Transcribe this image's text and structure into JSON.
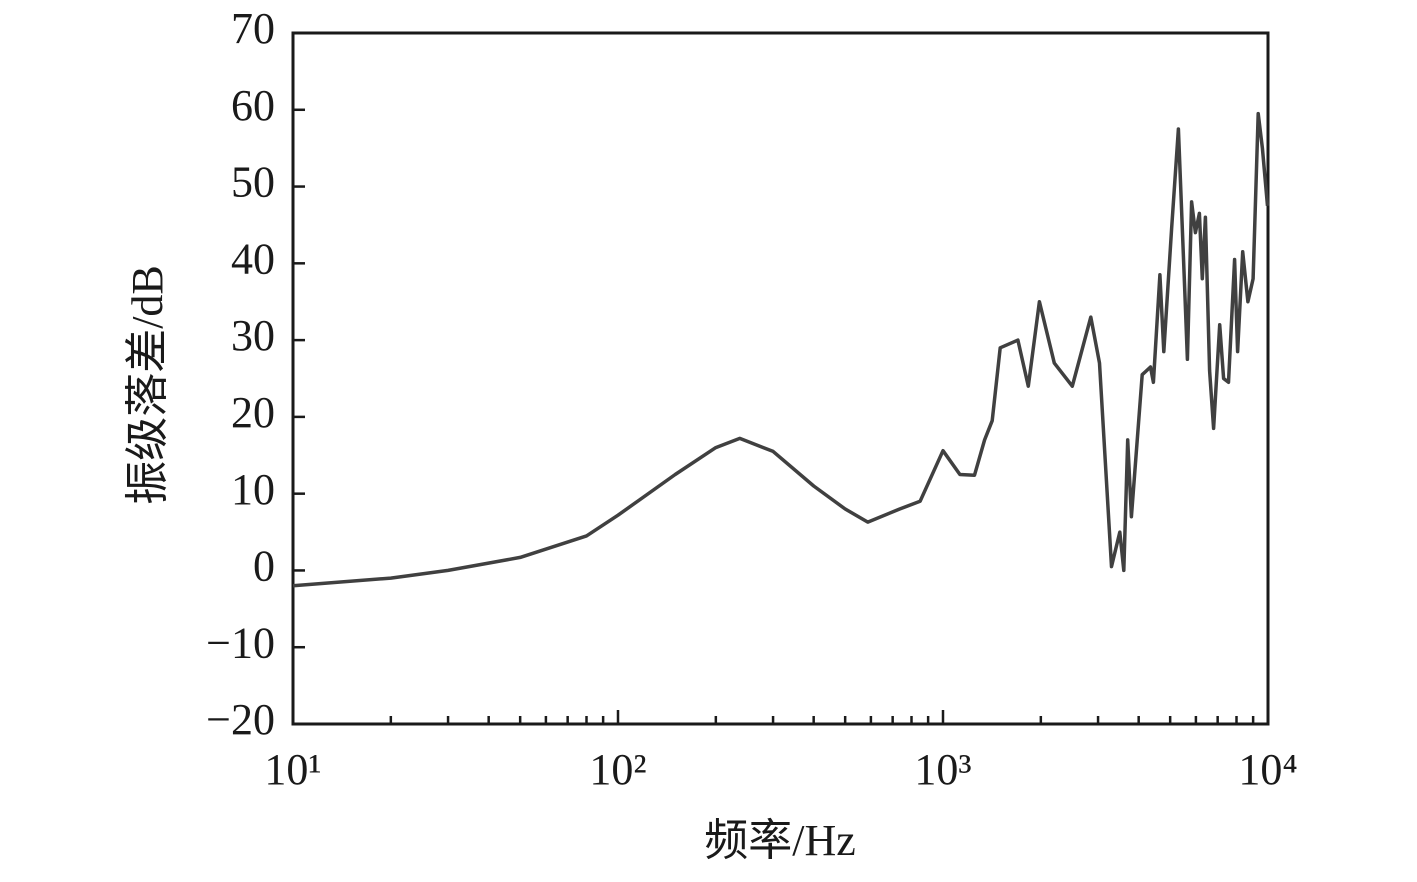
{
  "chart_data": {
    "type": "line",
    "log_x": true,
    "grid": false,
    "xlabel": "频率/Hz",
    "ylabel": "振级落差/dB",
    "xlim": [
      10,
      10000
    ],
    "xticks": [
      {
        "value": 10,
        "label": "10¹"
      },
      {
        "value": 100,
        "label": "10²"
      },
      {
        "value": 1000,
        "label": "10³"
      },
      {
        "value": 10000,
        "label": "10⁴"
      }
    ],
    "ylim": [
      -20,
      70
    ],
    "yticks": [
      {
        "value": -20,
        "label": "−20"
      },
      {
        "value": -10,
        "label": "−10"
      },
      0,
      10,
      20,
      30,
      40,
      50,
      60,
      70
    ],
    "x": [
      10,
      20,
      30,
      50,
      80,
      100,
      150,
      200,
      237,
      300,
      400,
      500,
      587,
      736,
      850,
      1000,
      1127,
      1250,
      1343,
      1417,
      1500,
      1700,
      1830,
      1980,
      2200,
      2500,
      2850,
      3030,
      3300,
      3500,
      3600,
      3700,
      3800,
      4100,
      4350,
      4440,
      4650,
      4780,
      5050,
      5300,
      5540,
      5650,
      5820,
      5980,
      6150,
      6280,
      6420,
      6610,
      6800,
      7100,
      7300,
      7560,
      7890,
      8060,
      8360,
      8670,
      9000,
      9330,
      9610,
      9965
    ],
    "series": [
      {
        "name": "振级落差",
        "color": "#404040",
        "values": [
          -2,
          -1,
          0,
          1.7,
          4.5,
          7.2,
          12.5,
          16,
          17.2,
          15.5,
          11,
          8,
          6.3,
          8,
          9,
          15.6,
          12.5,
          12.4,
          17,
          19.5,
          29,
          30,
          24,
          35,
          27,
          24,
          33,
          27,
          0.5,
          5,
          0,
          17,
          7,
          25.5,
          26.5,
          24.5,
          38.5,
          28.5,
          44.5,
          57.5,
          37,
          27.5,
          48,
          44,
          46.5,
          38,
          46,
          26,
          18.5,
          32,
          25,
          24.5,
          40.5,
          28.5,
          41.5,
          35,
          38,
          59.5,
          55,
          47.5
        ]
      }
    ]
  }
}
